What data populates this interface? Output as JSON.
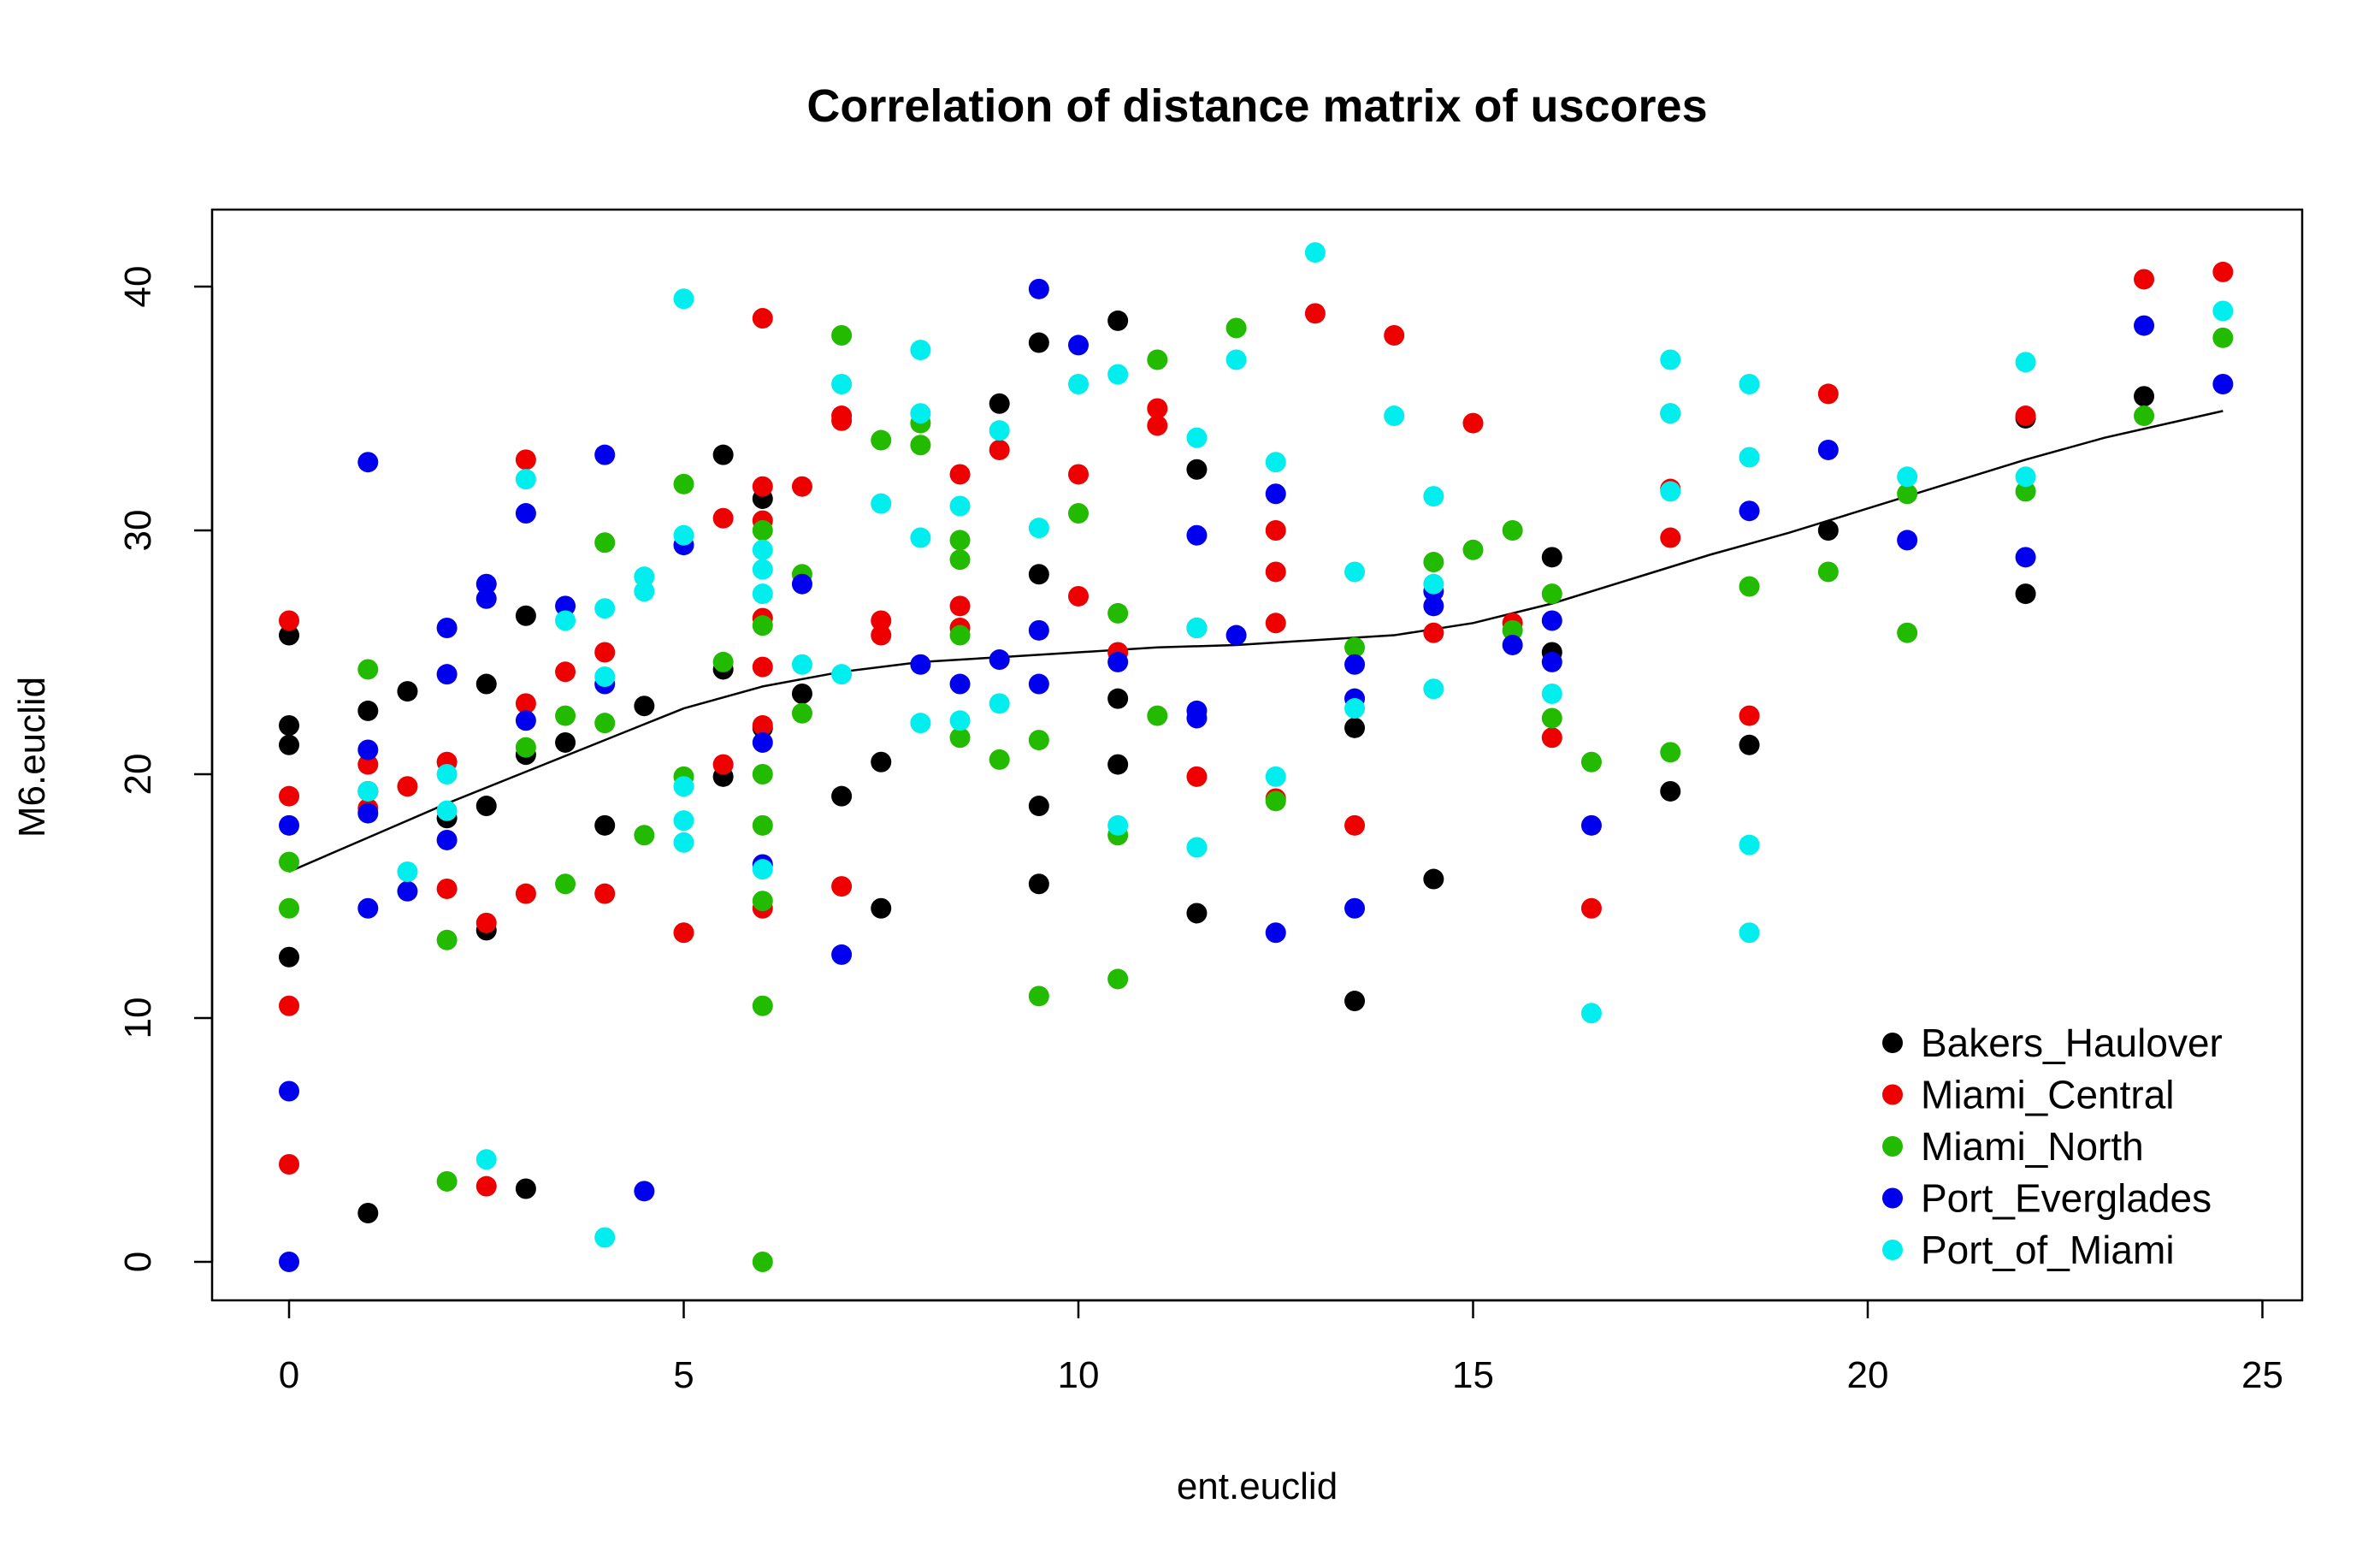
{
  "chart_data": {
    "type": "scatter",
    "title": "Correlation of distance matrix of uscores",
    "xlabel": "ent.euclid",
    "ylabel": "M6.euclid",
    "xlim": [
      0,
      25
    ],
    "ylim": [
      0,
      40
    ],
    "x_ticks": [
      0,
      5,
      10,
      15,
      20,
      25
    ],
    "y_ticks": [
      0,
      10,
      20,
      30,
      40
    ],
    "grid": false,
    "legend_position": "bottom-right",
    "series": [
      {
        "name": "Bakers_Haulover",
        "color": "#000000",
        "points": [
          [
            0,
            25.7
          ],
          [
            0,
            22
          ],
          [
            0,
            21.2
          ],
          [
            0,
            12.5
          ],
          [
            1,
            22.6
          ],
          [
            1,
            19.3
          ],
          [
            1,
            2
          ],
          [
            1.5,
            23.4
          ],
          [
            2,
            18.2
          ],
          [
            2.5,
            23.7
          ],
          [
            2.5,
            18.7
          ],
          [
            2.5,
            13.6
          ],
          [
            3,
            26.5
          ],
          [
            3,
            20.8
          ],
          [
            3,
            3
          ],
          [
            3.5,
            21.3
          ],
          [
            4,
            17.9
          ],
          [
            4.5,
            22.8
          ],
          [
            5.5,
            33.1
          ],
          [
            5.5,
            24.3
          ],
          [
            5.5,
            19.9
          ],
          [
            6,
            31.3
          ],
          [
            6,
            21.9
          ],
          [
            6.5,
            23.3
          ],
          [
            7,
            19.1
          ],
          [
            7.5,
            20.5
          ],
          [
            7.5,
            14.5
          ],
          [
            9,
            35.2
          ],
          [
            9.5,
            37.7
          ],
          [
            9.5,
            28.2
          ],
          [
            9.5,
            18.7
          ],
          [
            9.5,
            15.5
          ],
          [
            10.5,
            38.6
          ],
          [
            10.5,
            23.1
          ],
          [
            10.5,
            20.4
          ],
          [
            11.5,
            32.5
          ],
          [
            11.5,
            14.3
          ],
          [
            13.5,
            21.9
          ],
          [
            13.5,
            10.7
          ],
          [
            14.5,
            15.7
          ],
          [
            16,
            28.9
          ],
          [
            16,
            25
          ],
          [
            17.5,
            19.3
          ],
          [
            18.5,
            21.2
          ],
          [
            19.5,
            30
          ],
          [
            22,
            34.6
          ],
          [
            22,
            27.4
          ],
          [
            23.5,
            35.5
          ]
        ]
      },
      {
        "name": "Miami_Central",
        "color": "#ee0000",
        "points": [
          [
            0,
            26.3
          ],
          [
            0,
            19.1
          ],
          [
            0,
            10.5
          ],
          [
            0,
            4
          ],
          [
            1,
            20.4
          ],
          [
            1,
            18.6
          ],
          [
            1.5,
            19.5
          ],
          [
            2,
            20.5
          ],
          [
            2,
            15.3
          ],
          [
            2.5,
            13.9
          ],
          [
            2.5,
            3.1
          ],
          [
            3,
            32.9
          ],
          [
            3,
            22.9
          ],
          [
            3,
            15.1
          ],
          [
            3.5,
            24.2
          ],
          [
            4,
            25
          ],
          [
            4,
            15.1
          ],
          [
            5,
            13.5
          ],
          [
            5.5,
            30.5
          ],
          [
            5.5,
            20.4
          ],
          [
            6,
            38.7
          ],
          [
            6,
            31.8
          ],
          [
            6,
            30.4
          ],
          [
            6,
            26.4
          ],
          [
            6,
            24.4
          ],
          [
            6,
            22
          ],
          [
            6,
            14.5
          ],
          [
            6.5,
            31.8
          ],
          [
            7,
            34.7
          ],
          [
            7,
            34.5
          ],
          [
            7,
            15.4
          ],
          [
            7.5,
            26.3
          ],
          [
            7.5,
            25.7
          ],
          [
            8.5,
            32.3
          ],
          [
            8.5,
            26.9
          ],
          [
            8.5,
            26
          ],
          [
            9,
            33.3
          ],
          [
            10,
            32.3
          ],
          [
            10,
            27.3
          ],
          [
            10.5,
            25
          ],
          [
            11,
            35
          ],
          [
            11,
            34.3
          ],
          [
            11.5,
            26
          ],
          [
            11.5,
            19.9
          ],
          [
            12.5,
            30
          ],
          [
            12.5,
            28.3
          ],
          [
            12.5,
            26.2
          ],
          [
            12.5,
            19
          ],
          [
            13,
            38.9
          ],
          [
            13.5,
            17.9
          ],
          [
            14,
            38
          ],
          [
            14.5,
            25.8
          ],
          [
            15,
            34.4
          ],
          [
            15.5,
            26.2
          ],
          [
            16,
            21.5
          ],
          [
            16.5,
            14.5
          ],
          [
            17.5,
            34.8
          ],
          [
            17.5,
            31.7
          ],
          [
            17.5,
            29.7
          ],
          [
            18.5,
            22.4
          ],
          [
            19.5,
            35.6
          ],
          [
            22,
            34.7
          ],
          [
            23.5,
            40.3
          ],
          [
            24.5,
            40.6
          ]
        ]
      },
      {
        "name": "Miami_North",
        "color": "#22bb00",
        "points": [
          [
            0,
            16.4
          ],
          [
            0,
            14.5
          ],
          [
            1,
            24.3
          ],
          [
            2,
            13.2
          ],
          [
            2,
            3.3
          ],
          [
            3,
            21.1
          ],
          [
            3.5,
            22.4
          ],
          [
            3.5,
            15.5
          ],
          [
            4,
            29.5
          ],
          [
            4,
            22.1
          ],
          [
            4.5,
            17.5
          ],
          [
            5,
            31.9
          ],
          [
            5,
            19.9
          ],
          [
            5.5,
            24.6
          ],
          [
            6,
            30
          ],
          [
            6,
            26.1
          ],
          [
            6,
            20
          ],
          [
            6,
            17.9
          ],
          [
            6,
            14.8
          ],
          [
            6,
            10.5
          ],
          [
            6,
            0
          ],
          [
            6.5,
            28.2
          ],
          [
            6.5,
            22.5
          ],
          [
            7,
            38
          ],
          [
            7.5,
            33.7
          ],
          [
            8,
            34.4
          ],
          [
            8,
            33.5
          ],
          [
            8.5,
            29.6
          ],
          [
            8.5,
            28.8
          ],
          [
            8.5,
            25.7
          ],
          [
            8.5,
            21.5
          ],
          [
            9,
            20.6
          ],
          [
            9.5,
            21.4
          ],
          [
            9.5,
            10.9
          ],
          [
            10,
            30.7
          ],
          [
            10.5,
            26.6
          ],
          [
            10.5,
            17.5
          ],
          [
            10.5,
            11.6
          ],
          [
            11,
            37
          ],
          [
            11,
            22.4
          ],
          [
            12,
            38.3
          ],
          [
            12.5,
            18.9
          ],
          [
            13.5,
            25.2
          ],
          [
            14.5,
            28.7
          ],
          [
            15,
            29.2
          ],
          [
            15.5,
            30
          ],
          [
            15.5,
            25.9
          ],
          [
            16,
            27.4
          ],
          [
            16,
            22.3
          ],
          [
            16.5,
            20.5
          ],
          [
            17.5,
            20.9
          ],
          [
            18.5,
            27.7
          ],
          [
            19.5,
            28.3
          ],
          [
            20.5,
            31.5
          ],
          [
            20.5,
            25.8
          ],
          [
            22,
            31.6
          ],
          [
            23.5,
            34.7
          ],
          [
            24.5,
            37.9
          ]
        ]
      },
      {
        "name": "Port_Everglades",
        "color": "#0000ee",
        "points": [
          [
            0,
            17.9
          ],
          [
            0,
            7
          ],
          [
            0,
            0
          ],
          [
            1,
            32.8
          ],
          [
            1,
            21
          ],
          [
            1,
            18.4
          ],
          [
            1,
            14.5
          ],
          [
            1.5,
            15.2
          ],
          [
            2,
            26
          ],
          [
            2,
            24.1
          ],
          [
            2,
            17.3
          ],
          [
            2.5,
            27.8
          ],
          [
            2.5,
            27.2
          ],
          [
            3,
            30.7
          ],
          [
            3,
            22.2
          ],
          [
            3.5,
            26.9
          ],
          [
            4,
            33.1
          ],
          [
            4,
            23.7
          ],
          [
            4.5,
            2.9
          ],
          [
            5,
            29.4
          ],
          [
            6,
            21.3
          ],
          [
            6,
            16.3
          ],
          [
            6.5,
            27.8
          ],
          [
            7,
            12.6
          ],
          [
            8,
            24.5
          ],
          [
            8.5,
            23.7
          ],
          [
            9,
            24.7
          ],
          [
            9.5,
            39.9
          ],
          [
            9.5,
            25.9
          ],
          [
            9.5,
            23.7
          ],
          [
            10,
            37.6
          ],
          [
            10.5,
            24.6
          ],
          [
            11.5,
            29.8
          ],
          [
            11.5,
            22.6
          ],
          [
            11.5,
            22.3
          ],
          [
            12,
            25.7
          ],
          [
            12.5,
            31.5
          ],
          [
            12.5,
            13.5
          ],
          [
            13.5,
            24.5
          ],
          [
            13.5,
            23.1
          ],
          [
            13.5,
            14.5
          ],
          [
            14.5,
            27.5
          ],
          [
            14.5,
            26.9
          ],
          [
            15.5,
            25.3
          ],
          [
            16,
            26.3
          ],
          [
            16,
            24.6
          ],
          [
            16.5,
            17.9
          ],
          [
            18.5,
            30.8
          ],
          [
            19.5,
            33.3
          ],
          [
            20.5,
            29.6
          ],
          [
            22,
            28.9
          ],
          [
            23.5,
            38.4
          ],
          [
            24.5,
            36
          ]
        ]
      },
      {
        "name": "Port_of_Miami",
        "color": "#00eeee",
        "points": [
          [
            1,
            19.3
          ],
          [
            1.5,
            16
          ],
          [
            2,
            18.5
          ],
          [
            2,
            20
          ],
          [
            2.5,
            4.2
          ],
          [
            3,
            32.1
          ],
          [
            3.5,
            26.3
          ],
          [
            4,
            26.8
          ],
          [
            4,
            24
          ],
          [
            4,
            1
          ],
          [
            4.5,
            28.1
          ],
          [
            4.5,
            27.5
          ],
          [
            5,
            39.5
          ],
          [
            5,
            29.8
          ],
          [
            5,
            19.5
          ],
          [
            5,
            18.1
          ],
          [
            5,
            17.2
          ],
          [
            6,
            29.2
          ],
          [
            6,
            28.4
          ],
          [
            6,
            27.4
          ],
          [
            6,
            16.1
          ],
          [
            6.5,
            24.5
          ],
          [
            7,
            36
          ],
          [
            7,
            24.1
          ],
          [
            7.5,
            31.1
          ],
          [
            8,
            37.4
          ],
          [
            8,
            34.8
          ],
          [
            8,
            29.7
          ],
          [
            8,
            22.1
          ],
          [
            8.5,
            31
          ],
          [
            8.5,
            22.2
          ],
          [
            9,
            34.1
          ],
          [
            9,
            22.9
          ],
          [
            9.5,
            30.1
          ],
          [
            10,
            36
          ],
          [
            10.5,
            36.4
          ],
          [
            10.5,
            17.9
          ],
          [
            11.5,
            33.8
          ],
          [
            11.5,
            26
          ],
          [
            11.5,
            17
          ],
          [
            12,
            37
          ],
          [
            12.5,
            32.8
          ],
          [
            12.5,
            19.9
          ],
          [
            13,
            41.4
          ],
          [
            13.5,
            28.3
          ],
          [
            13.5,
            22.7
          ],
          [
            14,
            34.7
          ],
          [
            14.5,
            31.4
          ],
          [
            14.5,
            27.8
          ],
          [
            14.5,
            23.5
          ],
          [
            16,
            23.3
          ],
          [
            16.5,
            10.2
          ],
          [
            17.5,
            37
          ],
          [
            17.5,
            34.8
          ],
          [
            17.5,
            31.6
          ],
          [
            18.5,
            36
          ],
          [
            18.5,
            33
          ],
          [
            18.5,
            17.1
          ],
          [
            18.5,
            13.5
          ],
          [
            20.5,
            32.2
          ],
          [
            22,
            36.9
          ],
          [
            22,
            32.2
          ],
          [
            24.5,
            39
          ]
        ]
      }
    ],
    "trend_line": {
      "color": "#000000",
      "points": [
        [
          0,
          16
        ],
        [
          1,
          17.4
        ],
        [
          2,
          18.8
        ],
        [
          3,
          20.1
        ],
        [
          4,
          21.4
        ],
        [
          5,
          22.7
        ],
        [
          6,
          23.6
        ],
        [
          7,
          24.2
        ],
        [
          8,
          24.6
        ],
        [
          9,
          24.8
        ],
        [
          10,
          25
        ],
        [
          11,
          25.2
        ],
        [
          12,
          25.3
        ],
        [
          13,
          25.5
        ],
        [
          14,
          25.7
        ],
        [
          15,
          26.2
        ],
        [
          16,
          27
        ],
        [
          17,
          28
        ],
        [
          18,
          29
        ],
        [
          19,
          29.9
        ],
        [
          20,
          30.9
        ],
        [
          21,
          31.9
        ],
        [
          22,
          32.9
        ],
        [
          23,
          33.8
        ],
        [
          24.5,
          34.9
        ]
      ]
    }
  }
}
